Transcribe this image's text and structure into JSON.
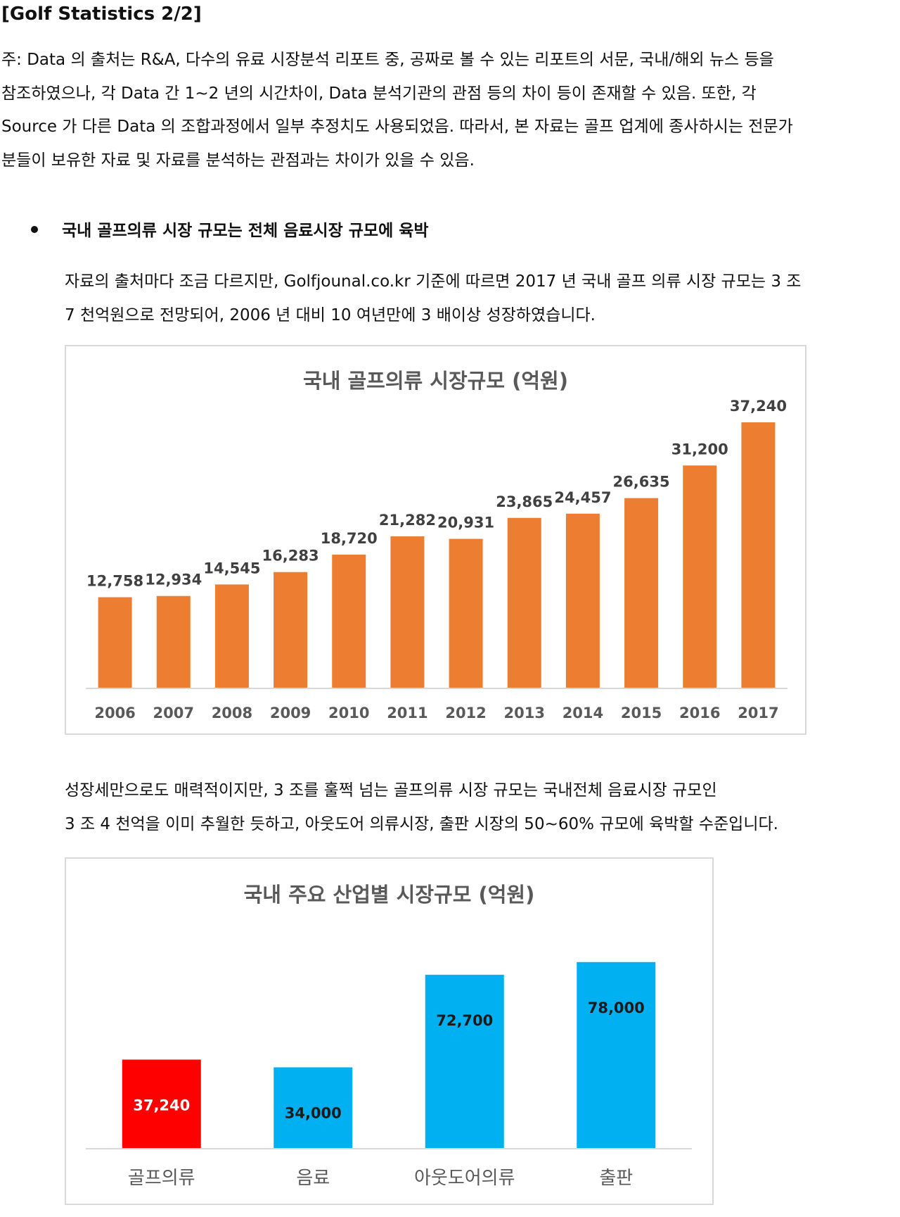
{
  "header": {
    "title": "[Golf Statistics 2/2]"
  },
  "note": {
    "lines": [
      "주: Data 의 출처는 R&A, 다수의 유료 시장분석 리포트 중, 공짜로 볼 수 있는 리포트의 서문, 국내/해외 뉴스 등을",
      "참조하였으나, 각 Data 간 1~2 년의 시간차이, Data 분석기관의 관점 등의 차이 등이 존재할 수 있음. 또한, 각",
      "Source 가 다른 Data 의 조합과정에서 일부 추정치도 사용되었음. 따라서, 본 자료는 골프 업계에 종사하시는 전문가",
      "분들이 보유한 자료 및 자료를 분석하는 관점과는 차이가 있을 수 있음."
    ]
  },
  "section": {
    "bullet": "국내 골프의류 시장 규모는 전체 음료시장 규모에 육박"
  },
  "paragraph1": {
    "lines": [
      "자료의 출처마다 조금 다르지만, Golfjounal.co.kr 기준에 따르면 2017 년 국내 골프 의류 시장 규모는 3 조",
      "7 천억원으로 전망되어, 2006 년 대비 10 여년만에 3 배이상 성장하였습니다."
    ]
  },
  "paragraph2": {
    "lines": [
      "성장세만으로도 매력적이지만, 3 조를 훌쩍 넘는 골프의류 시장 규모는 국내전체 음료시장 규모인",
      "3 조 4 천억을 이미 추월한 듯하고, 아웃도어 의류시장, 출판 시장의 50~60% 규모에 육박할 수준입니다."
    ]
  },
  "chart_data": [
    {
      "type": "bar",
      "title": "국내 골프의류 시장규모 (억원)",
      "categories": [
        "2006",
        "2007",
        "2008",
        "2009",
        "2010",
        "2011",
        "2012",
        "2013",
        "2014",
        "2015",
        "2016",
        "2017"
      ],
      "values": [
        12758,
        12934,
        14545,
        16283,
        18720,
        21282,
        20931,
        23865,
        24457,
        26635,
        31200,
        37240
      ],
      "labels": [
        "12,758",
        "12,934",
        "14,545",
        "16,283",
        "18,720",
        "21,282",
        "20,931",
        "23,865",
        "24,457",
        "26,635",
        "31,200",
        "37,240"
      ],
      "ylim": [
        0,
        40000
      ],
      "grid": false,
      "data_labels_position": "above",
      "colors": {
        "bar": "#ED7D31",
        "label": "#404040",
        "axis": "#d9d9d9"
      }
    },
    {
      "type": "bar",
      "title": "국내 주요 산업별 시장규모 (억원)",
      "categories": [
        "골프의류",
        "음료",
        "아웃도어의류",
        "출판"
      ],
      "values": [
        37240,
        34000,
        72700,
        78000
      ],
      "labels": [
        "37,240",
        "34,000",
        "72,700",
        "78,000"
      ],
      "ylim": [
        0,
        85000
      ],
      "grid": false,
      "data_labels_position": "inside",
      "colors": {
        "bars": [
          "#FF0000",
          "#00B0F0",
          "#00B0F0",
          "#00B0F0"
        ],
        "labels": [
          "#ffffff",
          "#1a1a1a",
          "#1a1a1a",
          "#1a1a1a"
        ],
        "axis": "#d9d9d9"
      }
    }
  ]
}
